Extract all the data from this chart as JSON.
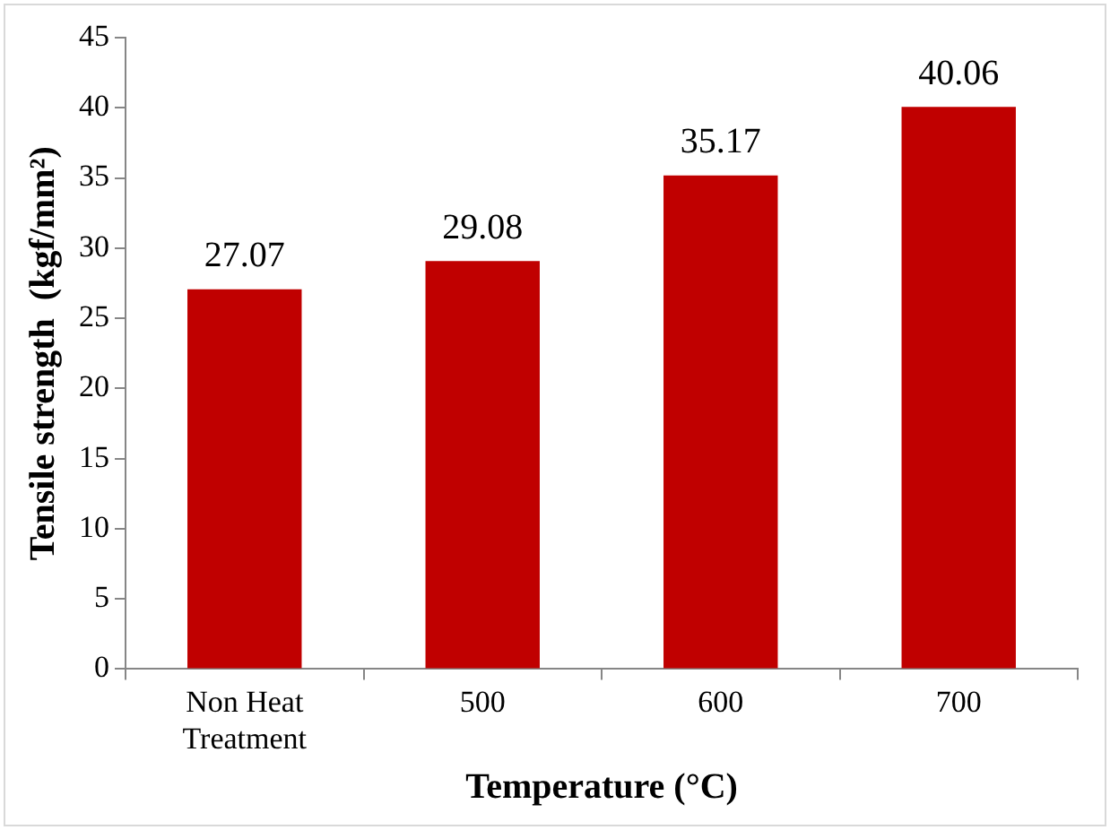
{
  "chart_data": {
    "type": "bar",
    "xlabel": "Temperature (°C)",
    "ylabel": "Tensile strength  (kgf/mm²)",
    "categories": [
      "Non Heat Treatment",
      "500",
      "600",
      "700"
    ],
    "values": [
      27.07,
      29.08,
      35.17,
      40.06
    ],
    "color": "#c00000",
    "ylim": [
      0,
      45
    ],
    "yticks": [
      0,
      5,
      10,
      15,
      20,
      25,
      30,
      35,
      40,
      45
    ],
    "grid": false,
    "legend": false,
    "data_labels": true
  }
}
